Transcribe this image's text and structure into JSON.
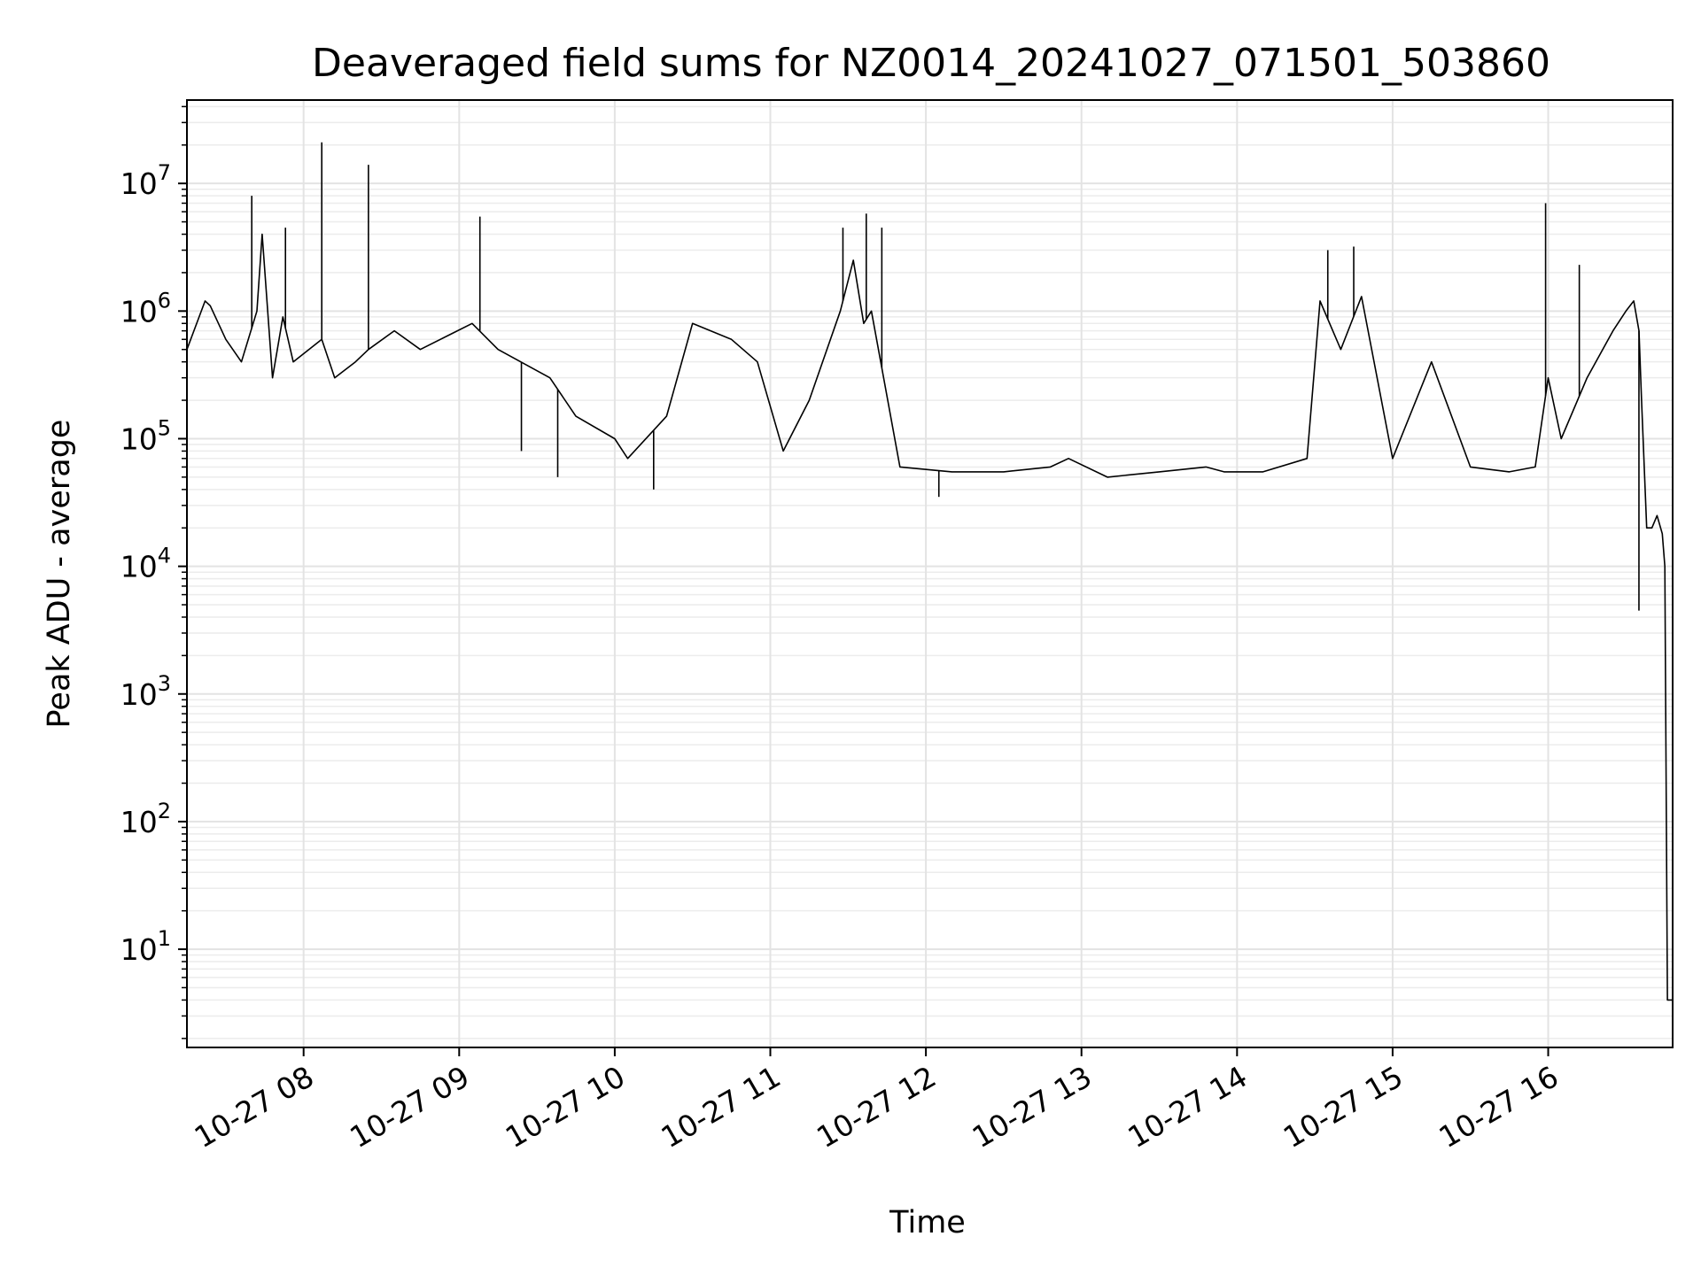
{
  "chart_data": {
    "type": "line",
    "title": "Deaveraged field sums for NZ0014_20241027_071501_503860",
    "xlabel": "Time",
    "ylabel": "Peak ADU - average",
    "yscale": "log",
    "ylim": [
      1.7,
      45000000
    ],
    "xlim": [
      "2024-10-27 07:15",
      "2024-10-27 16:48"
    ],
    "grid": true,
    "legend": "none",
    "line_color": "#000000",
    "x_tick_labels": [
      "10-27 08",
      "10-27 09",
      "10-27 10",
      "10-27 11",
      "10-27 12",
      "10-27 13",
      "10-27 14",
      "10-27 15",
      "10-27 16"
    ],
    "x_ticks": [
      "2024-10-27 08:00",
      "2024-10-27 09:00",
      "2024-10-27 10:00",
      "2024-10-27 11:00",
      "2024-10-27 12:00",
      "2024-10-27 13:00",
      "2024-10-27 14:00",
      "2024-10-27 15:00",
      "2024-10-27 16:00"
    ],
    "y_ticks": [
      {
        "value": 10,
        "base": "10",
        "exp": "1"
      },
      {
        "value": 100,
        "base": "10",
        "exp": "2"
      },
      {
        "value": 1000,
        "base": "10",
        "exp": "3"
      },
      {
        "value": 10000,
        "base": "10",
        "exp": "4"
      },
      {
        "value": 100000,
        "base": "10",
        "exp": "5"
      },
      {
        "value": 1000000,
        "base": "10",
        "exp": "6"
      },
      {
        "value": 10000000,
        "base": "10",
        "exp": "7"
      }
    ],
    "series": [
      {
        "x": [
          "2024-10-27 07:15",
          "2024-10-27 07:22",
          "2024-10-27 07:24",
          "2024-10-27 07:30",
          "2024-10-27 07:36",
          "2024-10-27 07:42",
          "2024-10-27 07:44",
          "2024-10-27 07:48",
          "2024-10-27 07:52",
          "2024-10-27 07:56",
          "2024-10-27 08:07",
          "2024-10-27 08:12",
          "2024-10-27 08:20",
          "2024-10-27 08:25",
          "2024-10-27 08:35",
          "2024-10-27 08:45",
          "2024-10-27 09:05",
          "2024-10-27 09:15",
          "2024-10-27 09:35",
          "2024-10-27 09:45",
          "2024-10-27 10:00",
          "2024-10-27 10:05",
          "2024-10-27 10:20",
          "2024-10-27 10:30",
          "2024-10-27 10:45",
          "2024-10-27 10:55",
          "2024-10-27 11:05",
          "2024-10-27 11:15",
          "2024-10-27 11:27",
          "2024-10-27 11:32",
          "2024-10-27 11:36",
          "2024-10-27 11:39",
          "2024-10-27 11:50",
          "2024-10-27 12:10",
          "2024-10-27 12:30",
          "2024-10-27 12:48",
          "2024-10-27 12:55",
          "2024-10-27 13:10",
          "2024-10-27 13:30",
          "2024-10-27 13:48",
          "2024-10-27 13:55",
          "2024-10-27 14:10",
          "2024-10-27 14:27",
          "2024-10-27 14:32",
          "2024-10-27 14:40",
          "2024-10-27 14:48",
          "2024-10-27 15:00",
          "2024-10-27 15:15",
          "2024-10-27 15:30",
          "2024-10-27 15:45",
          "2024-10-27 15:55",
          "2024-10-27 16:00",
          "2024-10-27 16:05",
          "2024-10-27 16:15",
          "2024-10-27 16:25",
          "2024-10-27 16:30",
          "2024-10-27 16:33",
          "2024-10-27 16:35",
          "2024-10-27 16:36",
          "2024-10-27 16:38",
          "2024-10-27 16:40",
          "2024-10-27 16:42",
          "2024-10-27 16:44",
          "2024-10-27 16:45",
          "2024-10-27 16:46",
          "2024-10-27 16:47",
          "2024-10-27 16:48"
        ],
        "y": [
          500000,
          1200000,
          1100000,
          600000,
          400000,
          1000000,
          4000000,
          300000,
          900000,
          400000,
          600000,
          300000,
          400000,
          500000,
          700000,
          500000,
          800000,
          500000,
          300000,
          150000,
          100000,
          70000,
          150000,
          800000,
          600000,
          400000,
          80000,
          200000,
          1000000,
          2500000,
          800000,
          1000000,
          60000,
          55000,
          55000,
          60000,
          70000,
          50000,
          55000,
          60000,
          55000,
          55000,
          70000,
          1200000,
          500000,
          1300000,
          70000,
          400000,
          60000,
          55000,
          60000,
          300000,
          100000,
          300000,
          700000,
          1000000,
          1200000,
          700000,
          200000,
          20000,
          20000,
          25000,
          18000,
          10000,
          4,
          4,
          4
        ],
        "spikes": [
          {
            "x": "2024-10-27 07:40",
            "y": 8000000
          },
          {
            "x": "2024-10-27 07:53",
            "y": 4500000
          },
          {
            "x": "2024-10-27 08:07",
            "y": 21000000
          },
          {
            "x": "2024-10-27 08:25",
            "y": 14000000
          },
          {
            "x": "2024-10-27 09:08",
            "y": 5500000
          },
          {
            "x": "2024-10-27 09:24",
            "y": 80000
          },
          {
            "x": "2024-10-27 09:38",
            "y": 50000
          },
          {
            "x": "2024-10-27 10:15",
            "y": 40000
          },
          {
            "x": "2024-10-27 11:28",
            "y": 4500000
          },
          {
            "x": "2024-10-27 11:37",
            "y": 5800000
          },
          {
            "x": "2024-10-27 11:43",
            "y": 4500000
          },
          {
            "x": "2024-10-27 12:05",
            "y": 35000
          },
          {
            "x": "2024-10-27 14:35",
            "y": 3000000
          },
          {
            "x": "2024-10-27 14:45",
            "y": 3200000
          },
          {
            "x": "2024-10-27 15:59",
            "y": 7000000
          },
          {
            "x": "2024-10-27 16:12",
            "y": 2300000
          },
          {
            "x": "2024-10-27 16:35",
            "y": 4500
          }
        ]
      }
    ]
  }
}
